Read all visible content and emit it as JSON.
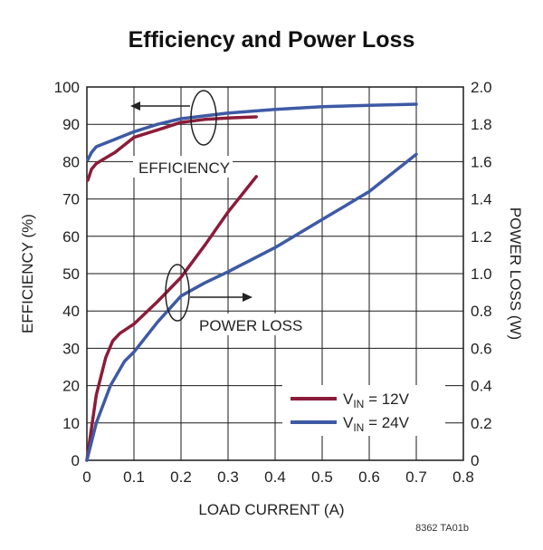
{
  "chart_data": {
    "type": "line",
    "title": "Efficiency and Power Loss",
    "xlabel": "LOAD CURRENT (A)",
    "ylabel": "EFFICIENCY (%)",
    "y2label": "POWER LOSS (W)",
    "xlim": [
      0,
      0.8
    ],
    "ylim": [
      0,
      100
    ],
    "y2lim": [
      0,
      2.0
    ],
    "x_ticks": [
      "0",
      "0.1",
      "0.2",
      "0.3",
      "0.4",
      "0.5",
      "0.6",
      "0.7",
      "0.8"
    ],
    "y_ticks": [
      "0",
      "10",
      "20",
      "30",
      "40",
      "50",
      "60",
      "70",
      "80",
      "90",
      "100"
    ],
    "y2_ticks": [
      "0",
      "0.2",
      "0.4",
      "0.6",
      "0.8",
      "1.0",
      "1.2",
      "1.4",
      "1.6",
      "1.8",
      "2.0"
    ],
    "grid": true,
    "legend_position": "bottom-right",
    "legend": [
      {
        "prefix": "V",
        "sub": "IN",
        "suffix": " = 12V"
      },
      {
        "prefix": "V",
        "sub": "IN",
        "suffix": " = 24V"
      }
    ],
    "annotations": {
      "efficiency": "EFFICIENCY",
      "power_loss": "POWER LOSS"
    },
    "figure_code": "8362 TA01b",
    "series": [
      {
        "name": "VIN = 12V, efficiency",
        "axis": "left",
        "color": "#8b1c3a",
        "x": [
          0.002,
          0.01,
          0.02,
          0.04,
          0.06,
          0.08,
          0.1,
          0.15,
          0.2,
          0.25,
          0.3,
          0.36
        ],
        "y": [
          75,
          78,
          79.5,
          81,
          82.5,
          84.5,
          86.5,
          88.5,
          90.5,
          91.3,
          91.7,
          92
        ]
      },
      {
        "name": "VIN = 24V, efficiency",
        "axis": "left",
        "color": "#3e5aa5",
        "x": [
          0.002,
          0.01,
          0.02,
          0.05,
          0.1,
          0.15,
          0.2,
          0.3,
          0.4,
          0.5,
          0.6,
          0.7
        ],
        "y": [
          80.5,
          82.5,
          84,
          85.5,
          88,
          90,
          91.5,
          93,
          94,
          94.7,
          95.1,
          95.4
        ]
      },
      {
        "name": "VIN = 12V, power loss",
        "axis": "right",
        "color": "#8b1c3a",
        "x": [
          0,
          0.02,
          0.04,
          0.055,
          0.07,
          0.1,
          0.15,
          0.2,
          0.25,
          0.3,
          0.36
        ],
        "y": [
          0,
          0.35,
          0.55,
          0.64,
          0.68,
          0.73,
          0.85,
          0.98,
          1.15,
          1.33,
          1.52
        ]
      },
      {
        "name": "VIN = 24V, power loss",
        "axis": "right",
        "color": "#3e5aa5",
        "x": [
          0,
          0.02,
          0.05,
          0.08,
          0.1,
          0.15,
          0.2,
          0.25,
          0.3,
          0.4,
          0.5,
          0.6,
          0.7
        ],
        "y": [
          0,
          0.2,
          0.4,
          0.53,
          0.58,
          0.74,
          0.88,
          0.95,
          1.01,
          1.14,
          1.29,
          1.44,
          1.64
        ]
      }
    ]
  }
}
